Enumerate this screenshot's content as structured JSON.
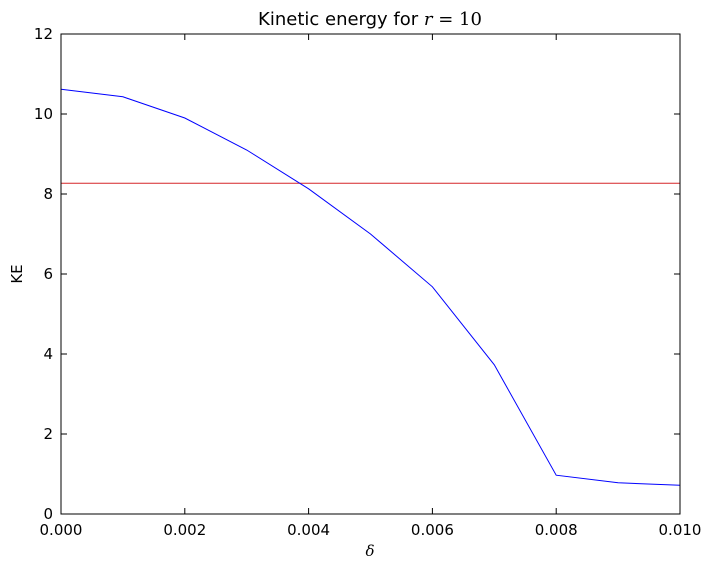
{
  "chart_data": {
    "type": "line",
    "title": {
      "prefix": "Kinetic energy for ",
      "math_var": "r",
      "math_rest": " = 10"
    },
    "xlabel": "δ",
    "ylabel": "KE",
    "xlim": [
      0,
      0.01
    ],
    "ylim": [
      0,
      12
    ],
    "xticks": [
      0,
      0.002,
      0.004,
      0.006,
      0.008,
      0.01
    ],
    "xtick_labels": [
      "0.000",
      "0.002",
      "0.004",
      "0.006",
      "0.008",
      "0.010"
    ],
    "yticks": [
      0,
      2,
      4,
      6,
      8,
      10,
      12
    ],
    "ytick_labels": [
      "0",
      "2",
      "4",
      "6",
      "8",
      "10",
      "12"
    ],
    "grid": false,
    "series": [
      {
        "color": "#0000ff",
        "x": [
          0,
          0.001,
          0.002,
          0.003,
          0.004,
          0.005,
          0.006,
          0.007,
          0.008,
          0.009,
          0.01
        ],
        "y": [
          10.62,
          10.43,
          9.9,
          9.1,
          8.13,
          7.0,
          5.68,
          3.73,
          0.97,
          0.78,
          0.72
        ]
      }
    ],
    "hlines": [
      {
        "y": 8.27,
        "color": "#d62728"
      }
    ]
  }
}
